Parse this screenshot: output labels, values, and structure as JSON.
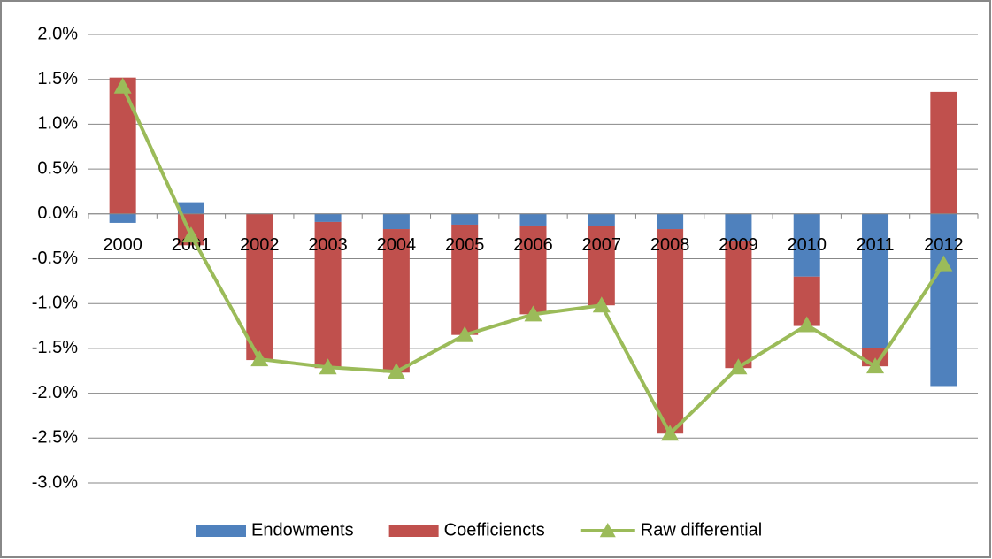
{
  "chart_data": {
    "type": "bar",
    "categories": [
      "2000",
      "2001",
      "2002",
      "2003",
      "2004",
      "2005",
      "2006",
      "2007",
      "2008",
      "2009",
      "2010",
      "2011",
      "2012"
    ],
    "series": [
      {
        "name": "Endowments",
        "type": "bar",
        "color": "#4f81bd",
        "values": [
          -0.1,
          0.13,
          0,
          -0.09,
          -0.17,
          -0.12,
          -0.13,
          -0.14,
          -0.17,
          -0.3,
          -0.7,
          -1.5,
          -1.92
        ]
      },
      {
        "name": "Coefficiencts",
        "type": "bar",
        "color": "#c0504d",
        "values": [
          1.52,
          -0.35,
          -1.63,
          -1.63,
          -1.6,
          -1.23,
          -0.99,
          -0.88,
          -2.28,
          -1.42,
          -0.55,
          -0.2,
          1.36
        ]
      },
      {
        "name": "Raw differential",
        "type": "line",
        "color": "#9bbb59",
        "values": [
          1.42,
          -0.24,
          -1.62,
          -1.71,
          -1.76,
          -1.35,
          -1.12,
          -1.02,
          -2.45,
          -1.71,
          -1.24,
          -1.7,
          -0.56
        ]
      }
    ],
    "ylim": [
      -3,
      2
    ],
    "yticks": [
      {
        "value": -3,
        "label": "-3.0%"
      },
      {
        "value": -2.5,
        "label": "-2.5%"
      },
      {
        "value": -2,
        "label": "-2.0%"
      },
      {
        "value": -1.5,
        "label": "-1.5%"
      },
      {
        "value": -1,
        "label": "-1.0%"
      },
      {
        "value": -0.5,
        "label": "-0.5%"
      },
      {
        "value": 0,
        "label": "0.0%"
      },
      {
        "value": 0.5,
        "label": "0.5%"
      },
      {
        "value": 1,
        "label": "1.0%"
      },
      {
        "value": 1.5,
        "label": "1.5%"
      },
      {
        "value": 2,
        "label": "2.0%"
      }
    ],
    "grid": true,
    "legend": "bottom"
  }
}
